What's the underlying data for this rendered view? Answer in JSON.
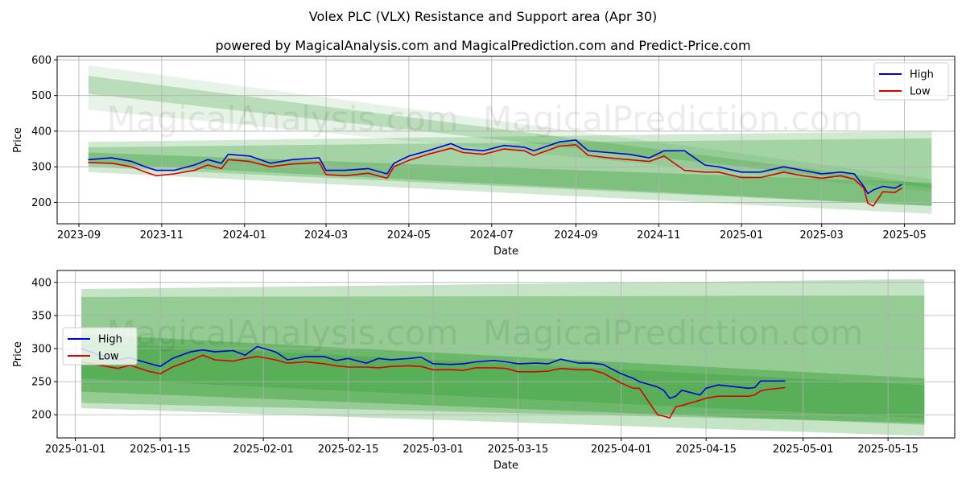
{
  "title": "Volex PLC (VLX) Resistance and Support area (Apr 30)",
  "subtitle": "powered by MagicalAnalysis.com and MagicalPrediction.com and Predict-Price.com",
  "watermarks": [
    "MagicalAnalysis.com",
    "MagicalPrediction.com"
  ],
  "colors": {
    "high": "#0000dd",
    "low": "#dd0000",
    "band": "#2e9a2e",
    "grid": "#b0b0b0"
  },
  "chart_data": [
    {
      "type": "line",
      "xlabel": "Date",
      "ylabel": "Price",
      "x_ticks": [
        "2023-09",
        "2023-11",
        "2024-01",
        "2024-03",
        "2024-05",
        "2024-07",
        "2024-09",
        "2024-11",
        "2025-01",
        "2025-03",
        "2025-05"
      ],
      "y_ticks": [
        200,
        300,
        400,
        500,
        600
      ],
      "xlim": [
        "2023-08-16",
        "2025-06-07"
      ],
      "ylim": [
        140,
        610
      ],
      "grid": true,
      "legend": {
        "position": "top-right",
        "entries": [
          "High",
          "Low"
        ]
      },
      "bands": [
        {
          "x": [
            "2023-09-08",
            "2025-05-21"
          ],
          "upper": [
            585,
            265
          ],
          "lower": [
            460,
            230
          ],
          "opacity": 0.12
        },
        {
          "x": [
            "2023-09-08",
            "2025-05-21"
          ],
          "upper": [
            555,
            250
          ],
          "lower": [
            505,
            240
          ],
          "opacity": 0.25
        },
        {
          "x": [
            "2023-09-08",
            "2025-05-21"
          ],
          "upper": [
            370,
            400
          ],
          "lower": [
            285,
            168
          ],
          "opacity": 0.22
        },
        {
          "x": [
            "2023-09-08",
            "2025-05-21"
          ],
          "upper": [
            355,
            380
          ],
          "lower": [
            300,
            190
          ],
          "opacity": 0.28
        },
        {
          "x": [
            "2023-09-08",
            "2025-05-21"
          ],
          "upper": [
            340,
            255
          ],
          "lower": [
            310,
            190
          ],
          "opacity": 0.32
        }
      ],
      "series": [
        {
          "name": "High",
          "x": [
            "2023-09-08",
            "2023-09-25",
            "2023-10-10",
            "2023-10-20",
            "2023-10-28",
            "2023-11-10",
            "2023-11-25",
            "2023-12-05",
            "2023-12-15",
            "2023-12-20",
            "2024-01-05",
            "2024-01-20",
            "2024-02-05",
            "2024-02-25",
            "2024-03-01",
            "2024-03-15",
            "2024-04-01",
            "2024-04-15",
            "2024-04-20",
            "2024-05-01",
            "2024-05-15",
            "2024-06-01",
            "2024-06-10",
            "2024-06-25",
            "2024-07-10",
            "2024-07-25",
            "2024-08-01",
            "2024-08-20",
            "2024-09-01",
            "2024-09-10",
            "2024-09-25",
            "2024-10-10",
            "2024-10-25",
            "2024-11-05",
            "2024-11-20",
            "2024-12-05",
            "2024-12-15",
            "2025-01-01",
            "2025-01-15",
            "2025-02-01",
            "2025-02-15",
            "2025-03-01",
            "2025-03-15",
            "2025-03-25",
            "2025-04-01",
            "2025-04-04",
            "2025-04-08",
            "2025-04-15",
            "2025-04-24",
            "2025-04-29"
          ],
          "values": [
            320,
            325,
            315,
            300,
            290,
            290,
            305,
            320,
            310,
            335,
            330,
            310,
            320,
            325,
            290,
            290,
            295,
            280,
            310,
            330,
            345,
            365,
            350,
            345,
            360,
            355,
            345,
            370,
            375,
            345,
            340,
            335,
            325,
            345,
            345,
            305,
            300,
            285,
            285,
            300,
            290,
            280,
            285,
            280,
            245,
            225,
            235,
            245,
            240,
            250
          ]
        },
        {
          "name": "Low",
          "x": [
            "2023-09-08",
            "2023-09-25",
            "2023-10-10",
            "2023-10-20",
            "2023-10-28",
            "2023-11-10",
            "2023-11-25",
            "2023-12-05",
            "2023-12-15",
            "2023-12-20",
            "2024-01-05",
            "2024-01-20",
            "2024-02-05",
            "2024-02-25",
            "2024-03-01",
            "2024-03-15",
            "2024-04-01",
            "2024-04-15",
            "2024-04-20",
            "2024-05-01",
            "2024-05-15",
            "2024-06-01",
            "2024-06-10",
            "2024-06-25",
            "2024-07-10",
            "2024-07-25",
            "2024-08-01",
            "2024-08-20",
            "2024-09-01",
            "2024-09-10",
            "2024-09-25",
            "2024-10-10",
            "2024-10-25",
            "2024-11-05",
            "2024-11-20",
            "2024-12-05",
            "2024-12-15",
            "2025-01-01",
            "2025-01-15",
            "2025-02-01",
            "2025-02-15",
            "2025-03-01",
            "2025-03-15",
            "2025-03-25",
            "2025-04-01",
            "2025-04-04",
            "2025-04-08",
            "2025-04-15",
            "2025-04-24",
            "2025-04-29"
          ],
          "values": [
            312,
            310,
            300,
            285,
            275,
            280,
            290,
            305,
            295,
            320,
            315,
            300,
            308,
            312,
            278,
            275,
            282,
            268,
            300,
            318,
            335,
            352,
            340,
            335,
            350,
            345,
            332,
            358,
            362,
            332,
            325,
            320,
            315,
            330,
            290,
            285,
            285,
            270,
            270,
            285,
            275,
            268,
            275,
            265,
            240,
            198,
            190,
            230,
            228,
            240
          ]
        }
      ]
    },
    {
      "type": "line",
      "xlabel": "Date",
      "ylabel": "Price",
      "x_ticks": [
        "2025-01-01",
        "2025-01-15",
        "2025-02-01",
        "2025-02-15",
        "2025-03-01",
        "2025-03-15",
        "2025-04-01",
        "2025-04-15",
        "2025-05-01",
        "2025-05-15"
      ],
      "y_ticks": [
        200,
        250,
        300,
        350,
        400
      ],
      "xlim": [
        "2024-12-29",
        "2025-05-26"
      ],
      "ylim": [
        165,
        418
      ],
      "grid": true,
      "legend": {
        "position": "center-left",
        "entries": [
          "High",
          "Low"
        ]
      },
      "bands": [
        {
          "x": [
            "2025-01-02",
            "2025-05-21"
          ],
          "upper": [
            390,
            405
          ],
          "lower": [
            210,
            168
          ],
          "opacity": 0.28
        },
        {
          "x": [
            "2025-01-02",
            "2025-05-21"
          ],
          "upper": [
            378,
            380
          ],
          "lower": [
            218,
            188
          ],
          "opacity": 0.32
        },
        {
          "x": [
            "2025-01-02",
            "2025-05-21"
          ],
          "upper": [
            322,
            255
          ],
          "lower": [
            235,
            185
          ],
          "opacity": 0.4
        },
        {
          "x": [
            "2025-01-02",
            "2025-05-21"
          ],
          "upper": [
            310,
            245
          ],
          "lower": [
            255,
            195
          ],
          "opacity": 0.3
        }
      ],
      "series": [
        {
          "name": "High",
          "x": [
            "2025-01-02",
            "2025-01-05",
            "2025-01-08",
            "2025-01-10",
            "2025-01-13",
            "2025-01-15",
            "2025-01-17",
            "2025-01-20",
            "2025-01-22",
            "2025-01-24",
            "2025-01-27",
            "2025-01-29",
            "2025-01-31",
            "2025-02-03",
            "2025-02-05",
            "2025-02-08",
            "2025-02-11",
            "2025-02-13",
            "2025-02-15",
            "2025-02-18",
            "2025-02-20",
            "2025-02-22",
            "2025-02-25",
            "2025-02-27",
            "2025-03-01",
            "2025-03-04",
            "2025-03-06",
            "2025-03-08",
            "2025-03-11",
            "2025-03-13",
            "2025-03-15",
            "2025-03-18",
            "2025-03-20",
            "2025-03-22",
            "2025-03-25",
            "2025-03-27",
            "2025-03-29",
            "2025-04-01",
            "2025-04-03",
            "2025-04-04",
            "2025-04-07",
            "2025-04-08",
            "2025-04-09",
            "2025-04-10",
            "2025-04-11",
            "2025-04-14",
            "2025-04-15",
            "2025-04-17",
            "2025-04-22",
            "2025-04-23",
            "2025-04-24",
            "2025-04-25",
            "2025-04-28"
          ],
          "values": [
            300,
            290,
            283,
            286,
            278,
            273,
            285,
            295,
            298,
            295,
            297,
            290,
            303,
            295,
            283,
            288,
            288,
            282,
            285,
            278,
            285,
            283,
            285,
            287,
            277,
            276,
            277,
            280,
            282,
            280,
            277,
            278,
            277,
            284,
            278,
            278,
            276,
            262,
            255,
            250,
            242,
            237,
            225,
            228,
            237,
            230,
            240,
            245,
            240,
            241,
            251,
            251,
            251
          ]
        },
        {
          "name": "Low",
          "x": [
            "2025-01-02",
            "2025-01-05",
            "2025-01-08",
            "2025-01-10",
            "2025-01-13",
            "2025-01-15",
            "2025-01-17",
            "2025-01-20",
            "2025-01-22",
            "2025-01-24",
            "2025-01-27",
            "2025-01-29",
            "2025-01-31",
            "2025-02-03",
            "2025-02-05",
            "2025-02-08",
            "2025-02-11",
            "2025-02-13",
            "2025-02-15",
            "2025-02-18",
            "2025-02-20",
            "2025-02-22",
            "2025-02-25",
            "2025-02-27",
            "2025-03-01",
            "2025-03-04",
            "2025-03-06",
            "2025-03-08",
            "2025-03-11",
            "2025-03-13",
            "2025-03-15",
            "2025-03-18",
            "2025-03-20",
            "2025-03-22",
            "2025-03-25",
            "2025-03-27",
            "2025-03-29",
            "2025-04-01",
            "2025-04-03",
            "2025-04-04",
            "2025-04-07",
            "2025-04-08",
            "2025-04-09",
            "2025-04-10",
            "2025-04-11",
            "2025-04-14",
            "2025-04-15",
            "2025-04-17",
            "2025-04-22",
            "2025-04-23",
            "2025-04-24",
            "2025-04-25",
            "2025-04-28"
          ],
          "values": [
            280,
            275,
            270,
            275,
            266,
            262,
            272,
            282,
            290,
            283,
            281,
            285,
            288,
            283,
            278,
            280,
            277,
            274,
            272,
            272,
            271,
            273,
            274,
            273,
            268,
            268,
            267,
            271,
            271,
            270,
            265,
            265,
            266,
            270,
            268,
            268,
            263,
            248,
            240,
            240,
            200,
            198,
            195,
            212,
            214,
            222,
            225,
            228,
            228,
            230,
            236,
            238,
            241
          ]
        }
      ]
    }
  ]
}
